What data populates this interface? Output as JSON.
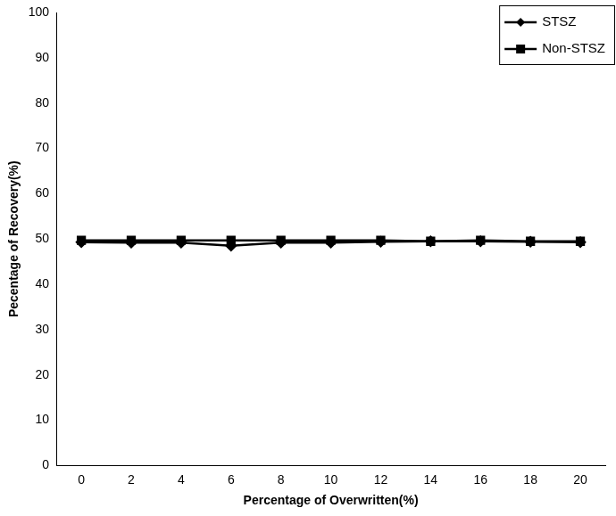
{
  "chart_data": {
    "type": "line",
    "x_label": "Percentage of Overwritten(%)",
    "y_label": "Pecentage of Recovery(%)",
    "categories": [
      0,
      2,
      4,
      6,
      8,
      10,
      12,
      14,
      16,
      18,
      20
    ],
    "series": [
      {
        "name": "STSZ",
        "color": "#000000",
        "marker": "diamond",
        "values": [
          49.3,
          49.2,
          49.2,
          48.5,
          49.2,
          49.2,
          49.4,
          49.5,
          49.5,
          49.4,
          49.3
        ]
      },
      {
        "name": "Non-STSZ",
        "color": "#000000",
        "marker": "square",
        "values": [
          49.7,
          49.7,
          49.7,
          49.7,
          49.7,
          49.7,
          49.7,
          49.5,
          49.7,
          49.5,
          49.5
        ]
      }
    ],
    "ylim": [
      0,
      100
    ],
    "yticks": [
      0,
      10,
      20,
      30,
      40,
      50,
      60,
      70,
      80,
      90,
      100
    ],
    "grid": false,
    "legend": "top-right"
  }
}
